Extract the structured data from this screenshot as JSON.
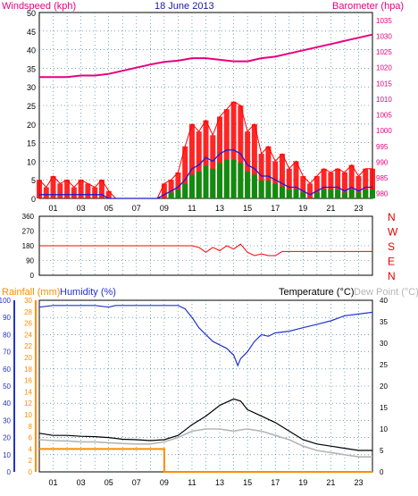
{
  "colors": {
    "wind_label": "#e6007e",
    "date": "#1a1aa6",
    "barometer": "#e6007e",
    "rainfall": "#ff8c00",
    "humidity": "#2233cc",
    "temperature": "#000000",
    "dewpoint": "#b5b5b5",
    "direction_letters": "#e60000",
    "gust": "#ff0000",
    "avg_wind": "#1a1ad6",
    "green_wind": "#108c10",
    "grid": "#1f6f8f"
  },
  "chart_data": [
    {
      "id": "wind_baro",
      "type": "line",
      "title": "18 June 2013",
      "left_label": "Windspeed (kph)",
      "right_label": "Barometer (hpa)",
      "y_left_ticks": [
        "0",
        "5",
        "10",
        "15",
        "20",
        "25",
        "30",
        "35",
        "40",
        "45",
        "50"
      ],
      "y_right_ticks": [
        "980",
        "985",
        "990",
        "995",
        "1000",
        "1005",
        "1010",
        "1015",
        "1020",
        "1025",
        "1030",
        "1035"
      ],
      "x_ticks": [
        "01",
        "03",
        "05",
        "07",
        "09",
        "11",
        "13",
        "15",
        "17",
        "19",
        "21",
        "23"
      ],
      "ylim_left": [
        0,
        50
      ],
      "ylim_right": [
        978.5,
        1037.5
      ],
      "xlim": [
        0,
        24
      ],
      "series": [
        {
          "key": "gust",
          "x": [
            0,
            0.5,
            1,
            1.5,
            2,
            2.5,
            3,
            3.5,
            4,
            4.5,
            5,
            5.5,
            6,
            6.5,
            7,
            7.5,
            8,
            8.5,
            9,
            9.5,
            10,
            10.5,
            11,
            11.5,
            12,
            12.5,
            13,
            13.5,
            14,
            14.5,
            15,
            15.5,
            16,
            16.5,
            17,
            17.5,
            18,
            18.5,
            19,
            19.5,
            20,
            20.5,
            21,
            21.5,
            22,
            22.5,
            23,
            23.5,
            24
          ],
          "y": [
            5,
            3,
            6,
            4,
            5,
            3,
            5,
            4,
            3,
            5,
            2,
            0,
            0,
            0,
            0,
            0,
            0,
            0,
            4,
            5,
            7,
            14,
            20,
            18,
            21,
            17,
            22,
            24,
            26,
            25,
            18,
            20,
            12,
            14,
            10,
            12,
            8,
            10,
            6,
            4,
            6,
            8,
            7,
            8,
            7,
            9,
            6,
            8,
            8
          ]
        },
        {
          "key": "average",
          "x": [
            0,
            0.5,
            1,
            1.5,
            2,
            2.5,
            3,
            3.5,
            4,
            4.5,
            5,
            5.5,
            6,
            6.5,
            7,
            7.5,
            8,
            8.5,
            9,
            9.5,
            10,
            10.5,
            11,
            11.5,
            12,
            12.5,
            13,
            13.5,
            14,
            14.5,
            15,
            15.5,
            16,
            16.5,
            17,
            17.5,
            18,
            18.5,
            19,
            19.5,
            20,
            20.5,
            21,
            21.5,
            22,
            22.5,
            23,
            23.5,
            24
          ],
          "y": [
            1,
            1,
            1,
            1,
            1,
            1,
            1,
            1,
            1,
            1,
            0,
            0,
            0,
            0,
            0,
            0,
            0,
            0,
            1,
            2,
            3,
            5,
            8,
            9,
            11,
            10,
            12,
            13,
            13,
            12,
            9,
            8,
            6,
            6,
            5,
            4,
            3,
            3,
            2,
            1,
            2,
            3,
            3,
            3,
            2,
            3,
            2,
            3,
            3
          ]
        },
        {
          "key": "barometer",
          "x": [
            0,
            1,
            2,
            3,
            4,
            5,
            6,
            7,
            8,
            9,
            10,
            11,
            12,
            13,
            14,
            15,
            16,
            17,
            18,
            19,
            20,
            21,
            22,
            23,
            24
          ],
          "y": [
            1017,
            1017,
            1017,
            1017.5,
            1017.5,
            1018,
            1019,
            1020,
            1021,
            1021.8,
            1022.2,
            1023,
            1023,
            1022.5,
            1022,
            1022,
            1023,
            1023.5,
            1024.5,
            1025.5,
            1026.5,
            1027.5,
            1028.5,
            1029.5,
            1030.5
          ]
        }
      ]
    },
    {
      "id": "direction",
      "type": "line",
      "y_ticks": [
        "360",
        "270",
        "180",
        "90",
        "0"
      ],
      "y_right_letters": [
        "N",
        "W",
        "S",
        "E",
        "N"
      ],
      "ylim": [
        0,
        360
      ],
      "xlim": [
        0,
        24
      ],
      "series": [
        {
          "key": "direction",
          "x": [
            0,
            11,
            11.5,
            12,
            12.5,
            13,
            13.5,
            14,
            14.5,
            15,
            15.5,
            16,
            16.5,
            17,
            17.5,
            24
          ],
          "y": [
            180,
            180,
            170,
            140,
            170,
            150,
            180,
            160,
            190,
            140,
            120,
            130,
            120,
            120,
            145,
            145
          ]
        }
      ]
    },
    {
      "id": "rain_hum_temp",
      "type": "line",
      "rain_label": "Rainfall (mm)",
      "humidity_label": "Humidity (%)",
      "temperature_label": "Temperature (°C)",
      "dewpoint_label": "Dew Point (°C)",
      "y_humidity_ticks": [
        "0",
        "10",
        "20",
        "30",
        "40",
        "50",
        "60",
        "70",
        "80",
        "90",
        "100"
      ],
      "y_rain_ticks": [
        "0",
        "2",
        "4",
        "6",
        "8",
        "10",
        "12",
        "14",
        "16",
        "18",
        "20",
        "22",
        "24",
        "26",
        "28",
        "30"
      ],
      "y_temp_ticks": [
        "0",
        "5",
        "10",
        "15",
        "20",
        "25",
        "30",
        "35",
        "40"
      ],
      "x_ticks": [
        "01",
        "03",
        "05",
        "07",
        "09",
        "11",
        "13",
        "15",
        "17",
        "19",
        "21",
        "23"
      ],
      "ylim_humidity": [
        0,
        100
      ],
      "ylim_rain": [
        0,
        30
      ],
      "ylim_temp": [
        0,
        40
      ],
      "xlim": [
        0,
        24
      ],
      "series": [
        {
          "key": "humidity",
          "x": [
            0,
            1,
            2,
            3,
            4,
            5,
            5.5,
            6,
            7,
            8,
            9,
            10,
            10.5,
            11,
            11.5,
            12,
            12.5,
            13,
            13.5,
            14,
            14.3,
            14.5,
            15,
            15.5,
            16,
            16.5,
            17,
            18,
            19,
            20,
            21,
            22,
            23,
            24
          ],
          "y": [
            96,
            97,
            97,
            97,
            97,
            96,
            97,
            97,
            97,
            97,
            97,
            97,
            95,
            90,
            84,
            80,
            76,
            74,
            72,
            68,
            62,
            66,
            70,
            76,
            80,
            79,
            81,
            82,
            84,
            86,
            88,
            91,
            92,
            93
          ]
        },
        {
          "key": "temperature",
          "x": [
            0,
            1,
            2,
            3,
            4,
            5,
            6,
            7,
            8,
            9,
            10,
            11,
            12,
            13,
            14,
            14.5,
            15,
            16,
            17,
            18,
            19,
            20,
            21,
            22,
            23,
            24
          ],
          "y": [
            9,
            8.5,
            8.5,
            8.3,
            8.2,
            8,
            7.6,
            7.5,
            7.3,
            7.5,
            8.5,
            11,
            13,
            15.5,
            17,
            16.5,
            14.5,
            13,
            11.5,
            9.5,
            7.5,
            6.5,
            6,
            5.5,
            5,
            5
          ]
        },
        {
          "key": "dewpoint",
          "x": [
            0,
            1,
            2,
            3,
            4,
            5,
            6,
            7,
            8,
            9,
            10,
            11,
            12,
            13,
            14,
            14.5,
            15,
            16,
            17,
            18,
            19,
            20,
            21,
            22,
            23,
            24
          ],
          "y": [
            7.5,
            7.3,
            7.2,
            7,
            7,
            6.8,
            6.6,
            6.5,
            6.5,
            7,
            8,
            9.5,
            10,
            10,
            9.5,
            9.8,
            10,
            9.5,
            8.5,
            7.5,
            6,
            5,
            4.5,
            4,
            3.5,
            3.5
          ]
        },
        {
          "key": "rainfall",
          "x": [
            0,
            9,
            9,
            24
          ],
          "y": [
            4,
            4,
            0,
            0
          ]
        }
      ]
    }
  ]
}
